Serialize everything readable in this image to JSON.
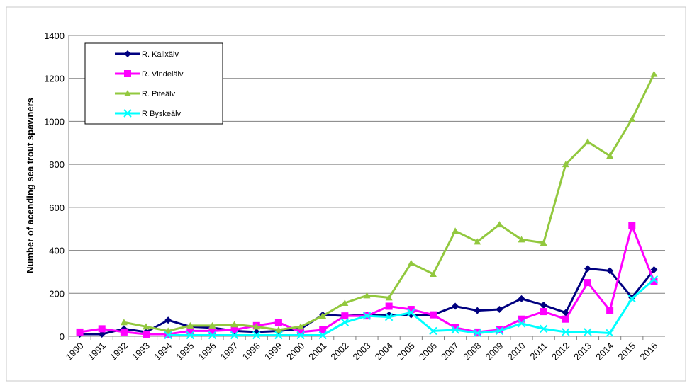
{
  "chart_data": {
    "type": "line",
    "y_label": "Number of acending  sea  trout spawners",
    "categories": [
      "1990",
      "1991",
      "1992",
      "1993",
      "1994",
      "1995",
      "1996",
      "1997",
      "1998",
      "1999",
      "2000",
      "2001",
      "2002",
      "2003",
      "2004",
      "2005",
      "2006",
      "2007",
      "2008",
      "2009",
      "2010",
      "2011",
      "2012",
      "2013",
      "2014",
      "2015",
      "2016"
    ],
    "ylim": [
      0,
      1400
    ],
    "yticks": [
      0,
      200,
      400,
      600,
      800,
      1000,
      1200,
      1400
    ],
    "grid": true,
    "legend": "top-left",
    "series": [
      {
        "name": "R. Kalixälv",
        "color": "#000080",
        "marker": "diamond",
        "values": [
          10,
          10,
          35,
          20,
          75,
          45,
          40,
          25,
          20,
          25,
          35,
          100,
          95,
          100,
          100,
          100,
          100,
          140,
          120,
          125,
          175,
          145,
          110,
          315,
          305,
          180,
          310
        ]
      },
      {
        "name": "R. Vindelälv",
        "color": "#ff00ff",
        "marker": "square",
        "values": [
          20,
          35,
          20,
          10,
          10,
          25,
          25,
          30,
          50,
          65,
          20,
          30,
          95,
          95,
          140,
          125,
          100,
          40,
          20,
          30,
          80,
          115,
          80,
          250,
          120,
          515,
          255
        ]
      },
      {
        "name": "R. Piteälv",
        "color": "#92c83e",
        "marker": "triangle",
        "values": [
          null,
          null,
          65,
          45,
          25,
          50,
          50,
          55,
          45,
          30,
          45,
          95,
          155,
          190,
          180,
          340,
          290,
          490,
          440,
          520,
          450,
          435,
          800,
          905,
          840,
          1010,
          1220
        ]
      },
      {
        "name": "R Byskeälv",
        "color": "#00ffff",
        "marker": "x",
        "values": [
          null,
          null,
          null,
          null,
          5,
          5,
          5,
          5,
          5,
          5,
          5,
          5,
          65,
          95,
          90,
          110,
          25,
          30,
          15,
          25,
          60,
          35,
          20,
          20,
          15,
          175,
          265
        ]
      }
    ]
  }
}
